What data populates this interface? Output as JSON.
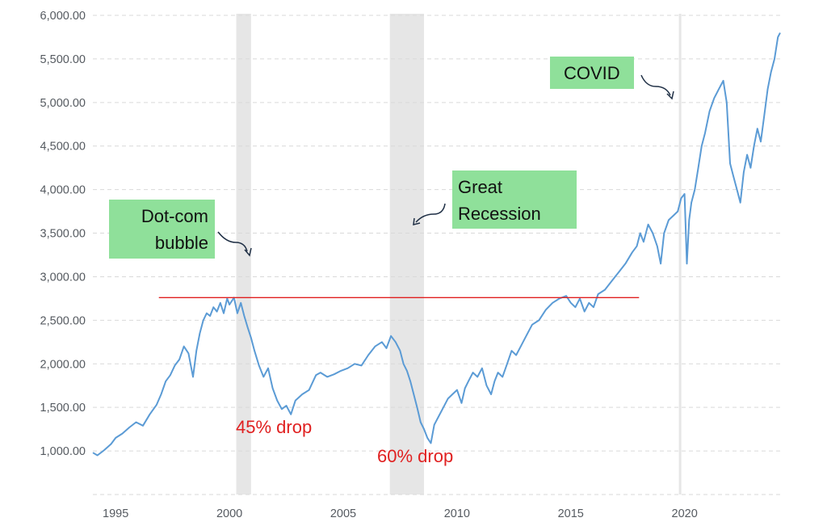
{
  "chart_data": {
    "type": "line",
    "title": "",
    "xlabel": "",
    "ylabel": "",
    "xlim": [
      1994.0,
      2024.2
    ],
    "ylim": [
      500,
      6000
    ],
    "grid": true,
    "y_ticks": [
      1000,
      1500,
      2000,
      2500,
      3000,
      3500,
      4000,
      4500,
      5000,
      5500,
      6000
    ],
    "y_tick_labels": [
      "1,000.00",
      "1,500.00",
      "2,000.00",
      "2,500.00",
      "3,000.00",
      "3,500.00",
      "4,000.00",
      "4,500.00",
      "5,000.00",
      "5,500.00",
      "6,000.00"
    ],
    "x_ticks": [
      1995,
      2000,
      2005,
      2010,
      2015,
      2020
    ],
    "x_tick_labels": [
      "1995",
      "2000",
      "2005",
      "2010",
      "2015",
      "2020"
    ],
    "series": [
      {
        "color": "#5b9bd5",
        "x": [
          1994.0,
          1994.2,
          1994.5,
          1994.8,
          1995.0,
          1995.3,
          1995.6,
          1995.9,
          1996.2,
          1996.5,
          1996.8,
          1997.0,
          1997.2,
          1997.4,
          1997.6,
          1997.8,
          1998.0,
          1998.2,
          1998.4,
          1998.55,
          1998.7,
          1998.85,
          1999.0,
          1999.15,
          1999.3,
          1999.45,
          1999.6,
          1999.75,
          1999.9,
          2000.0,
          2000.2,
          2000.35,
          2000.5,
          2000.65,
          2000.8,
          2000.95,
          2001.1,
          2001.3,
          2001.5,
          2001.7,
          2001.9,
          2002.1,
          2002.3,
          2002.5,
          2002.7,
          2002.9,
          2003.2,
          2003.5,
          2003.8,
          2004.0,
          2004.3,
          2004.6,
          2004.9,
          2005.2,
          2005.5,
          2005.8,
          2006.1,
          2006.4,
          2006.7,
          2006.9,
          2007.1,
          2007.3,
          2007.5,
          2007.65,
          2007.8,
          2007.95,
          2008.1,
          2008.25,
          2008.4,
          2008.55,
          2008.7,
          2008.85,
          2009.0,
          2009.2,
          2009.4,
          2009.6,
          2009.8,
          2010.0,
          2010.2,
          2010.35,
          2010.5,
          2010.7,
          2010.9,
          2011.1,
          2011.3,
          2011.5,
          2011.65,
          2011.8,
          2012.0,
          2012.2,
          2012.4,
          2012.6,
          2012.8,
          2013.0,
          2013.3,
          2013.6,
          2013.9,
          2014.2,
          2014.5,
          2014.8,
          2015.0,
          2015.2,
          2015.4,
          2015.6,
          2015.8,
          2016.0,
          2016.2,
          2016.5,
          2016.8,
          2017.1,
          2017.4,
          2017.7,
          2017.9,
          2018.05,
          2018.2,
          2018.4,
          2018.6,
          2018.8,
          2018.95,
          2019.1,
          2019.3,
          2019.5,
          2019.7,
          2019.85,
          2020.0,
          2020.1,
          2020.2,
          2020.3,
          2020.45,
          2020.6,
          2020.75,
          2020.9,
          2021.1,
          2021.3,
          2021.5,
          2021.7,
          2021.85,
          2022.0,
          2022.15,
          2022.3,
          2022.45,
          2022.6,
          2022.75,
          2022.9,
          2023.05,
          2023.2,
          2023.35,
          2023.5,
          2023.65,
          2023.8,
          2023.95,
          2024.1,
          2024.2
        ],
        "y": [
          980,
          950,
          1010,
          1080,
          1150,
          1200,
          1270,
          1330,
          1290,
          1420,
          1530,
          1650,
          1800,
          1870,
          1980,
          2050,
          2200,
          2120,
          1850,
          2150,
          2350,
          2500,
          2580,
          2550,
          2650,
          2600,
          2700,
          2580,
          2750,
          2680,
          2760,
          2580,
          2700,
          2550,
          2420,
          2300,
          2150,
          1980,
          1850,
          1950,
          1720,
          1580,
          1480,
          1520,
          1420,
          1580,
          1650,
          1700,
          1870,
          1900,
          1850,
          1880,
          1920,
          1950,
          2000,
          1980,
          2100,
          2200,
          2250,
          2180,
          2320,
          2250,
          2150,
          2000,
          1920,
          1800,
          1650,
          1500,
          1330,
          1250,
          1150,
          1090,
          1300,
          1400,
          1500,
          1600,
          1650,
          1700,
          1550,
          1720,
          1800,
          1900,
          1850,
          1950,
          1750,
          1650,
          1800,
          1900,
          1850,
          2000,
          2150,
          2100,
          2200,
          2300,
          2450,
          2500,
          2620,
          2700,
          2750,
          2780,
          2700,
          2650,
          2750,
          2600,
          2700,
          2650,
          2800,
          2850,
          2950,
          3050,
          3150,
          3280,
          3350,
          3500,
          3400,
          3600,
          3500,
          3350,
          3150,
          3500,
          3650,
          3700,
          3750,
          3900,
          3950,
          3150,
          3650,
          3850,
          4000,
          4250,
          4500,
          4650,
          4900,
          5050,
          5150,
          5250,
          5000,
          4300,
          4150,
          4000,
          3850,
          4200,
          4400,
          4250,
          4500,
          4700,
          4550,
          4850,
          5150,
          5350,
          5500,
          5750,
          5800
        ]
      }
    ],
    "recession_bands": [
      [
        2000.3,
        2000.95
      ],
      [
        2007.05,
        2008.55
      ],
      [
        2019.75,
        2019.85
      ]
    ],
    "reference_line": {
      "y": 2760,
      "x_start": 1996.9,
      "x_end": 2018.0,
      "color": "#e02020"
    },
    "annotations": {
      "drop_labels": [
        "45% drop",
        "60% drop"
      ],
      "callouts": [
        [
          "Dot-com",
          "bubble"
        ],
        [
          "Great",
          "Recession"
        ],
        [
          "COVID"
        ]
      ],
      "callout_color": "#8fe09a",
      "drop_color": "#e02020"
    }
  }
}
